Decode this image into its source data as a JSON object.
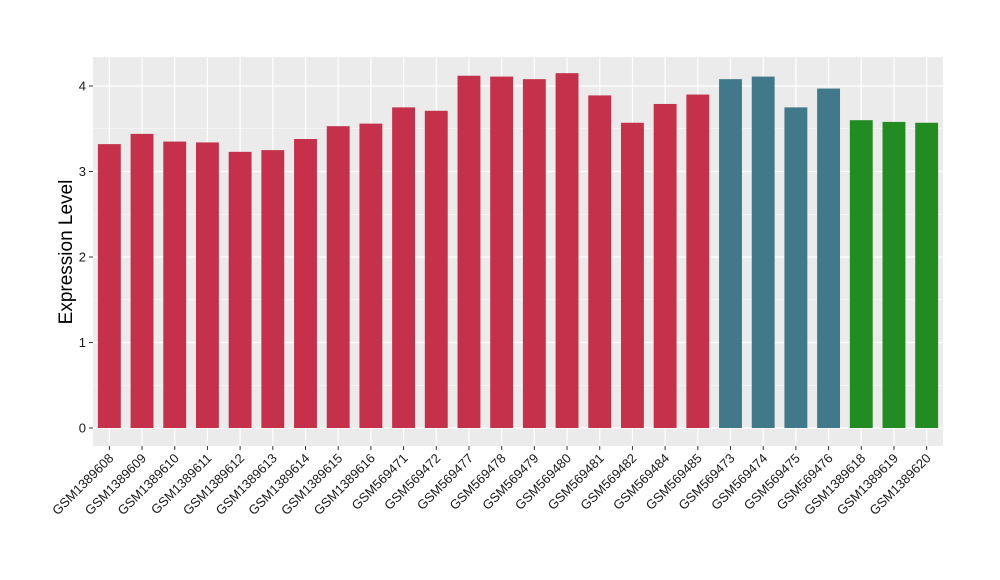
{
  "chart_data": {
    "type": "bar",
    "title": "",
    "xlabel": "",
    "ylabel": "Expression Level",
    "ylim": [
      0,
      4.3
    ],
    "yticks": [
      0,
      1,
      2,
      3,
      4
    ],
    "grid": true,
    "legend": "none",
    "categories": [
      "GSM1389608",
      "GSM1389609",
      "GSM1389610",
      "GSM1389611",
      "GSM1389612",
      "GSM1389613",
      "GSM1389614",
      "GSM1389615",
      "GSM1389616",
      "GSM569471",
      "GSM569472",
      "GSM569477",
      "GSM569478",
      "GSM569479",
      "GSM569480",
      "GSM569481",
      "GSM569482",
      "GSM569484",
      "GSM569485",
      "GSM569473",
      "GSM569474",
      "GSM569475",
      "GSM569476",
      "GSM1389618",
      "GSM1389619",
      "GSM1389620"
    ],
    "values": [
      3.32,
      3.44,
      3.35,
      3.34,
      3.23,
      3.25,
      3.38,
      3.53,
      3.56,
      3.75,
      3.71,
      4.12,
      4.11,
      4.08,
      4.15,
      3.89,
      3.57,
      3.79,
      3.9,
      4.08,
      4.11,
      3.75,
      3.97,
      3.6,
      3.58,
      3.57
    ],
    "bar_colors": [
      "#C5304A",
      "#C5304A",
      "#C5304A",
      "#C5304A",
      "#C5304A",
      "#C5304A",
      "#C5304A",
      "#C5304A",
      "#C5304A",
      "#C5304A",
      "#C5304A",
      "#C5304A",
      "#C5304A",
      "#C5304A",
      "#C5304A",
      "#C5304A",
      "#C5304A",
      "#C5304A",
      "#C5304A",
      "#41788A",
      "#41788A",
      "#41788A",
      "#41788A",
      "#228B22",
      "#228B22",
      "#228B22"
    ],
    "panel_background": "#EBEBEB",
    "gridline_color": "#FFFFFF"
  }
}
